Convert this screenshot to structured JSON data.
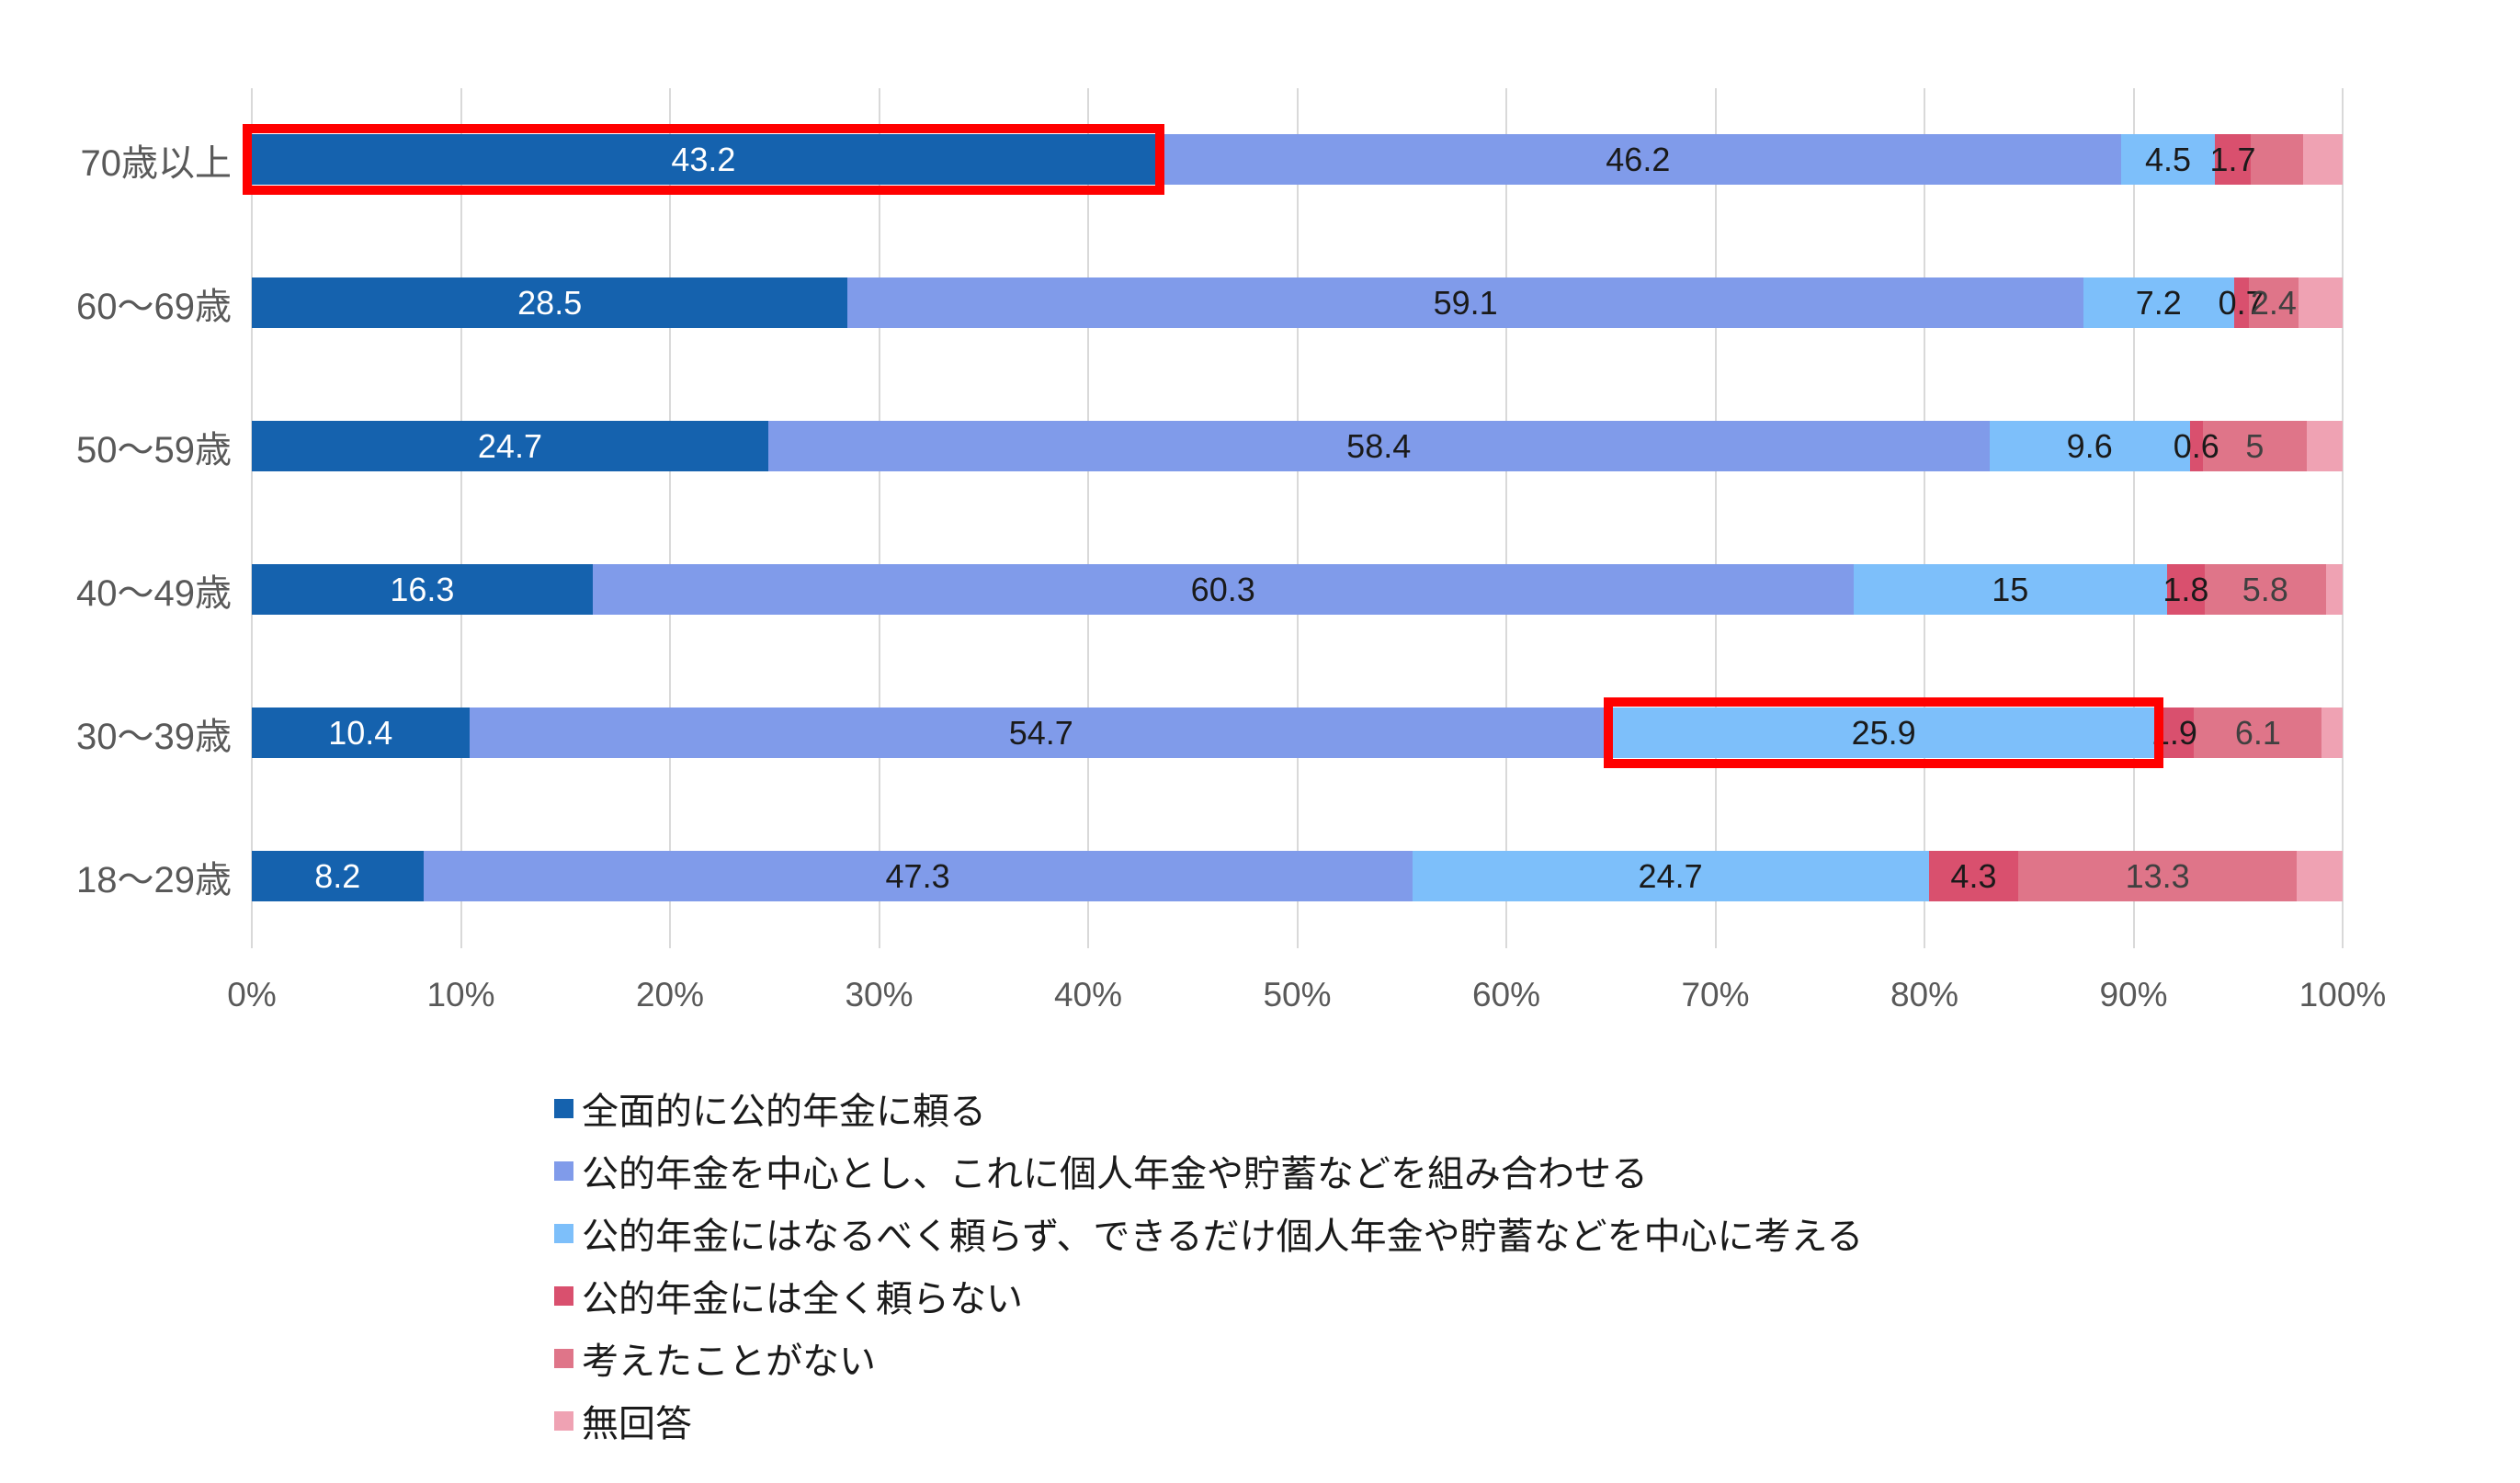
{
  "chart_data": {
    "type": "bar",
    "subtype": "stacked-100-horizontal",
    "title": "",
    "xlabel": "",
    "ylabel": "",
    "xlim": [
      0,
      100
    ],
    "grid": "vertical",
    "legend_position": "bottom-left",
    "x_ticks": [
      "0%",
      "10%",
      "20%",
      "30%",
      "40%",
      "50%",
      "60%",
      "70%",
      "80%",
      "90%",
      "100%"
    ],
    "categories": [
      "70歳以上",
      "60〜69歳",
      "50〜59歳",
      "40〜49歳",
      "30〜39歳",
      "18〜29歳"
    ],
    "series": [
      {
        "name": "全面的に公的年金に頼る",
        "color": "#1562AE",
        "label_color": "#FFFFFF",
        "values": [
          43.2,
          28.5,
          24.7,
          16.3,
          10.4,
          8.2
        ],
        "labels": [
          "43.2",
          "28.5",
          "24.7",
          "16.3",
          "10.4",
          "8.2"
        ]
      },
      {
        "name": "公的年金を中心とし、これに個人年金や貯蓄などを組み合わせる",
        "color": "#809BEA",
        "label_color": "#1a1a1a",
        "values": [
          46.2,
          59.1,
          58.4,
          60.3,
          54.7,
          47.3
        ],
        "labels": [
          "46.2",
          "59.1",
          "58.4",
          "60.3",
          "54.7",
          "47.3"
        ]
      },
      {
        "name": "公的年金にはなるべく頼らず、できるだけ個人年金や貯蓄などを中心に考える",
        "color": "#7DBFFA",
        "label_color": "#1a1a1a",
        "values": [
          4.5,
          7.2,
          9.6,
          15,
          25.9,
          24.7
        ],
        "labels": [
          "4.5",
          "7.2",
          "9.6",
          "15",
          "25.9",
          "24.7"
        ]
      },
      {
        "name": "公的年金には全く頼らない",
        "color": "#D9506E",
        "label_color": "#1a1a1a",
        "values": [
          1.7,
          0.7,
          0.6,
          1.8,
          1.9,
          4.3
        ],
        "labels": [
          "1.7",
          "0.7",
          "0.6",
          "1.8",
          "1.9",
          "4.3"
        ]
      },
      {
        "name": "考えたことがない",
        "color": "#DF7589",
        "label_color": "#404040",
        "values": [
          2.5,
          2.4,
          5,
          5.8,
          6.1,
          13.3
        ],
        "labels": [
          "",
          "2.4",
          "5",
          "5.8",
          "6.1",
          "13.3"
        ]
      },
      {
        "name": "無回答",
        "color": "#EFA2B3",
        "label_color": "#404040",
        "values": [
          1.9,
          2.1,
          1.7,
          0.8,
          1.0,
          2.2
        ],
        "labels": [
          "",
          "",
          "",
          "",
          "",
          ""
        ]
      }
    ],
    "annotations": [
      {
        "type": "highlight-box",
        "category": "70歳以上",
        "series": "全面的に公的年金に頼る",
        "from_pct": 0,
        "to_pct": 43.2,
        "color": "#FF0000"
      },
      {
        "type": "highlight-box",
        "category": "30〜39歳",
        "series": "公的年金にはなるべく頼らず、できるだけ個人年金や貯蓄などを中心に考える",
        "from_pct": 65.1,
        "to_pct": 91.0,
        "color": "#FF0000"
      }
    ],
    "colors": {
      "background": "#FFFFFF",
      "gridline": "#D9D9D9",
      "axis_text": "#595959",
      "highlight": "#FF0000"
    }
  }
}
